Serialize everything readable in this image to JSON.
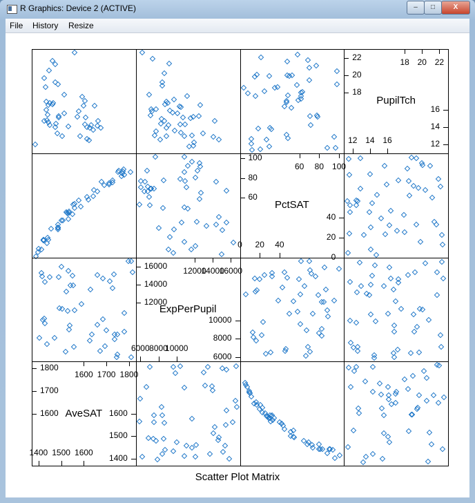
{
  "window": {
    "title": "R Graphics: Device 2 (ACTIVE)",
    "controls": {
      "minimize": "minimize-icon",
      "maximize": "maximize-icon",
      "close": "close-icon"
    }
  },
  "menu": {
    "items": [
      {
        "label": "File"
      },
      {
        "label": "History"
      },
      {
        "label": "Resize"
      }
    ]
  },
  "chart_data": {
    "type": "scatter",
    "title": "",
    "xlabel": "Scatter Plot Matrix",
    "variables": [
      "AveSAT",
      "ExpPerPupil",
      "PctSAT",
      "PupilTch"
    ],
    "marker": {
      "shape": "open-diamond",
      "color": "#1f77c8"
    },
    "diagonal": [
      {
        "name": "PupilTch",
        "ticks_low": [
          12,
          14,
          16
        ],
        "ticks_high": [
          18,
          20,
          22
        ],
        "range": [
          11,
          23
        ]
      },
      {
        "name": "PctSAT",
        "ticks_low": [
          0,
          20,
          40
        ],
        "ticks_high": [
          60,
          80,
          100
        ],
        "range": [
          0,
          105
        ]
      },
      {
        "name": "ExpPerPupil",
        "ticks_low": [
          6000,
          8000,
          10000
        ],
        "ticks_high": [
          12000,
          14000,
          16000
        ],
        "range": [
          5500,
          17000
        ]
      },
      {
        "name": "AveSAT",
        "ticks_low": [
          1400,
          1500,
          1600
        ],
        "ticks_high": [
          1600,
          1700,
          1800
        ],
        "range": [
          1370,
          1830
        ]
      }
    ],
    "panels": [
      {
        "row": 0,
        "col": 0,
        "x": "AveSAT",
        "y": "PupilTch",
        "points": [
          [
            4,
            137
          ],
          [
            24,
            30
          ],
          [
            17,
            41
          ],
          [
            33,
            21
          ],
          [
            29,
            16
          ],
          [
            61,
            4
          ],
          [
            19,
            54
          ],
          [
            33,
            47
          ],
          [
            37,
            50
          ],
          [
            46,
            65
          ],
          [
            20,
            75
          ],
          [
            25,
            77
          ],
          [
            29,
            79
          ],
          [
            23,
            80
          ],
          [
            20,
            87
          ],
          [
            30,
            77
          ],
          [
            38,
            98
          ],
          [
            34,
            107
          ],
          [
            38,
            96
          ],
          [
            22,
            94
          ],
          [
            21,
            102
          ],
          [
            17,
            103
          ],
          [
            23,
            105
          ],
          [
            25,
            109
          ],
          [
            33,
            112
          ],
          [
            46,
            92
          ],
          [
            52,
            111
          ],
          [
            36,
            121
          ],
          [
            43,
            125
          ],
          [
            65,
            97
          ],
          [
            67,
            89
          ],
          [
            72,
            68
          ],
          [
            76,
            74
          ],
          [
            74,
            81
          ],
          [
            77,
            98
          ],
          [
            83,
            113
          ],
          [
            79,
            112
          ],
          [
            85,
            109
          ],
          [
            88,
            116
          ],
          [
            90,
            81
          ],
          [
            94,
            110
          ],
          [
            76,
            108
          ],
          [
            69,
            125
          ],
          [
            79,
            129
          ],
          [
            82,
            131
          ],
          [
            95,
            103
          ],
          [
            99,
            113
          ]
        ]
      },
      {
        "row": 0,
        "col": 1,
        "x": "ExpPerPupil",
        "y": "PupilTch",
        "points": [
          [
            8,
            4
          ],
          [
            23,
            13
          ],
          [
            47,
            20
          ],
          [
            40,
            34
          ],
          [
            37,
            47
          ],
          [
            37,
            52
          ],
          [
            18,
            65
          ],
          [
            73,
            67
          ],
          [
            43,
            75
          ],
          [
            54,
            72
          ],
          [
            64,
            83
          ],
          [
            62,
            82
          ],
          [
            21,
            86
          ],
          [
            22,
            89
          ],
          [
            28,
            86
          ],
          [
            20,
            95
          ],
          [
            41,
            79
          ],
          [
            45,
            77
          ],
          [
            48,
            88
          ],
          [
            52,
            91
          ],
          [
            59,
            92
          ],
          [
            35,
            107
          ],
          [
            36,
            100
          ],
          [
            40,
            103
          ],
          [
            43,
            113
          ],
          [
            46,
            109
          ],
          [
            70,
            108
          ],
          [
            67,
            98
          ],
          [
            78,
            99
          ],
          [
            82,
            97
          ],
          [
            90,
            96
          ],
          [
            92,
            80
          ],
          [
            113,
            103
          ],
          [
            28,
            118
          ],
          [
            26,
            124
          ],
          [
            55,
            117
          ],
          [
            64,
            120
          ],
          [
            34,
            130
          ],
          [
            43,
            125
          ],
          [
            69,
            125
          ],
          [
            83,
            134
          ],
          [
            80,
            124
          ],
          [
            96,
            121
          ],
          [
            111,
            126
          ],
          [
            119,
            130
          ],
          [
            76,
            140
          ],
          [
            82,
            139
          ],
          [
            63,
            108
          ]
        ]
      }
    ]
  }
}
